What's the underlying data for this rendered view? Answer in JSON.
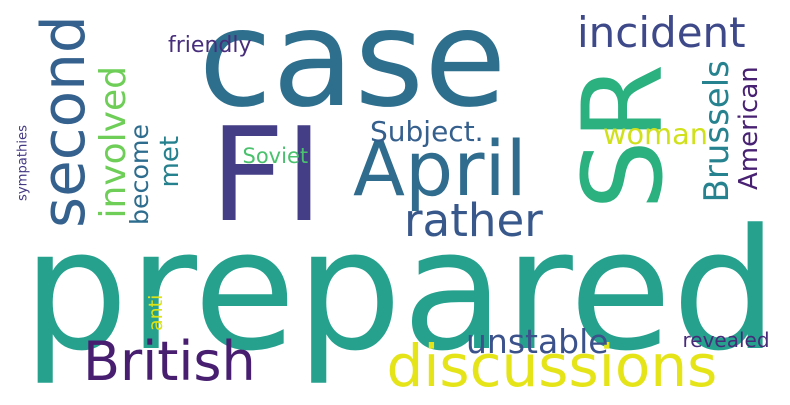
{
  "words": [
    {
      "text": "case",
      "color": "#2e6f8e",
      "rotated": false
    },
    {
      "text": "prepared",
      "color": "#25a18e",
      "rotated": false
    },
    {
      "text": "FI",
      "color": "#433e85",
      "rotated": false
    },
    {
      "text": "SR",
      "color": "#2bb07f",
      "rotated": true
    },
    {
      "text": "April",
      "color": "#2f6c8e",
      "rotated": false
    },
    {
      "text": "discussions",
      "color": "#e5e419",
      "rotated": false
    },
    {
      "text": "British",
      "color": "#481f70",
      "rotated": false
    },
    {
      "text": "second",
      "color": "#34618d",
      "rotated": true
    },
    {
      "text": "incident",
      "color": "#3e4989",
      "rotated": false
    },
    {
      "text": "involved",
      "color": "#6ece58",
      "rotated": true
    },
    {
      "text": "rather",
      "color": "#38588c",
      "rotated": false
    },
    {
      "text": "Subject.",
      "color": "#355f8d",
      "rotated": false
    },
    {
      "text": "unstable",
      "color": "#3b528b",
      "rotated": false
    },
    {
      "text": "Brussels",
      "color": "#26828e",
      "rotated": true
    },
    {
      "text": "American",
      "color": "#482173",
      "rotated": true
    },
    {
      "text": "woman",
      "color": "#d0e11c",
      "rotated": false
    },
    {
      "text": "become",
      "color": "#2e6d8e",
      "rotated": true
    },
    {
      "text": "met",
      "color": "#26818e",
      "rotated": true
    },
    {
      "text": "friendly",
      "color": "#472d7b",
      "rotated": false
    },
    {
      "text": "revealed",
      "color": "#472c7a",
      "rotated": false
    },
    {
      "text": "sympathies",
      "color": "#443983",
      "rotated": true
    },
    {
      "text": "Soviet",
      "color": "#4ac16d",
      "rotated": false
    },
    {
      "text": "anti",
      "color": "#dde318",
      "rotated": true
    }
  ]
}
